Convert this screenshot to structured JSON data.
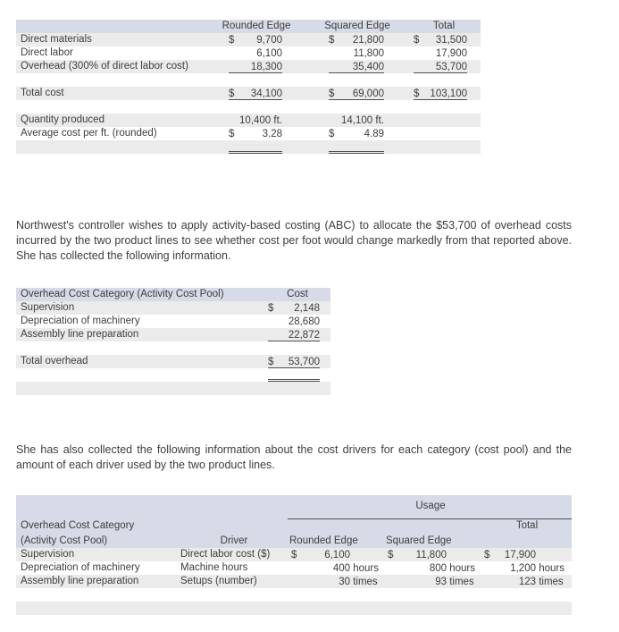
{
  "colors": {
    "header_bg": "#d7dbe7",
    "stripe_bg": "#ebebeb",
    "rule": "#4f4f4f",
    "text": "#3d3d3d",
    "page_bg": "#ffffff"
  },
  "paragraphs": {
    "abc_intro": "Northwest's controller wishes to apply activity-based costing (ABC) to allocate the $53,700 of overhead costs incurred by the two product lines to see whether cost per foot would change markedly from that reported above. She has collected the following information.",
    "drivers_intro": "She has also collected the following information about the cost drivers for each category (cost pool) and the amount of each driver used by the two product lines."
  },
  "tables": {
    "cost_summary": {
      "rows": [
        {
          "bg": "hdr",
          "n": "header-row",
          "cells": [
            {},
            {
              "t": "Rounded Edge"
            },
            {
              "t": "Squared Edge"
            },
            {
              "t": "Total"
            }
          ]
        },
        {
          "bg": "alt",
          "n": "row-direct-materials",
          "cells": [
            {
              "t": "Direct materials"
            },
            {
              "d": "$",
              "v": "9,700"
            },
            {
              "d": "$",
              "v": "21,800"
            },
            {
              "d": "$",
              "v": "31,500"
            }
          ]
        },
        {
          "bg": "",
          "n": "row-direct-labor",
          "cells": [
            {
              "t": "Direct labor"
            },
            {
              "v": "6,100"
            },
            {
              "v": "11,800"
            },
            {
              "v": "17,900"
            }
          ]
        },
        {
          "bg": "alt",
          "n": "row-overhead",
          "cells": [
            {
              "t": "Overhead (300% of direct labor cost)"
            },
            {
              "v": "18,300",
              "u": 1
            },
            {
              "v": "35,400",
              "u": 1
            },
            {
              "v": "53,700",
              "u": 1
            }
          ]
        },
        {
          "bg": "",
          "n": "spacer-row",
          "cells": [
            {},
            {},
            {},
            {}
          ]
        },
        {
          "bg": "alt",
          "n": "row-total-cost",
          "cells": [
            {
              "t": "Total cost"
            },
            {
              "d": "$",
              "v": "34,100",
              "u": 1
            },
            {
              "d": "$",
              "v": "69,000",
              "u": 1
            },
            {
              "d": "$",
              "v": "103,100",
              "u": 1
            }
          ]
        },
        {
          "bg": "",
          "n": "spacer-row",
          "cells": [
            {},
            {},
            {},
            {}
          ]
        },
        {
          "bg": "alt",
          "n": "row-quantity-produced",
          "cells": [
            {
              "t": "Quantity produced"
            },
            {
              "v": "10,400",
              "s": " ft."
            },
            {
              "v": "14,100",
              "s": " ft."
            },
            {}
          ]
        },
        {
          "bg": "",
          "n": "row-average-cost-per-ft",
          "cells": [
            {
              "t": "Average cost per ft. (rounded)"
            },
            {
              "d": "$",
              "v": "3.28"
            },
            {
              "d": "$",
              "v": "4.89"
            },
            {}
          ]
        },
        {
          "bg": "alt",
          "n": "double-rule-row",
          "cells": [
            {},
            {
              "v": "",
              "u": 2
            },
            {
              "v": "",
              "u": 2
            },
            {}
          ]
        },
        {
          "bg": "",
          "n": "spacer-row",
          "cells": [
            {},
            {},
            {},
            {}
          ]
        }
      ]
    },
    "overhead_pools": {
      "rows": [
        {
          "bg": "hdr",
          "n": "header-row",
          "cells": [
            {
              "t": "Overhead Cost Category (Activity Cost Pool)"
            },
            {
              "t": "Cost"
            }
          ]
        },
        {
          "bg": "alt",
          "n": "row-supervision",
          "cells": [
            {
              "t": "Supervision"
            },
            {
              "d": "$",
              "v": "2,148"
            }
          ]
        },
        {
          "bg": "",
          "n": "row-depreciation",
          "cells": [
            {
              "t": "Depreciation of machinery"
            },
            {
              "v": "28,680"
            }
          ]
        },
        {
          "bg": "alt",
          "n": "row-assembly-line-prep",
          "cells": [
            {
              "t": "Assembly line preparation"
            },
            {
              "v": "22,872",
              "u": 1
            }
          ]
        },
        {
          "bg": "",
          "n": "spacer-row",
          "cells": [
            {},
            {}
          ]
        },
        {
          "bg": "alt",
          "n": "row-total-overhead",
          "cells": [
            {
              "t": "Total overhead"
            },
            {
              "d": "$",
              "v": "53,700",
              "u": 1
            }
          ]
        },
        {
          "bg": "",
          "n": "double-rule-row",
          "cells": [
            {},
            {
              "v": "",
              "u": 2
            }
          ]
        },
        {
          "bg": "alt",
          "n": "spacer-row",
          "cells": [
            {},
            {}
          ]
        },
        {
          "bg": "",
          "n": "spacer-row",
          "cells": [
            {},
            {}
          ]
        }
      ]
    },
    "cost_drivers": {
      "rows": [
        {
          "bg": "hdr",
          "n": "usage-header-row",
          "cells": [
            {},
            {},
            {
              "t": "Usage",
              "span": 3,
              "u": 1
            }
          ]
        },
        {
          "bg": "hdr",
          "n": "header-row-line1",
          "cells": [
            {
              "t": "Overhead Cost Category"
            },
            {},
            {},
            {},
            {
              "t": "Total"
            }
          ]
        },
        {
          "bg": "hdr",
          "n": "header-row-line2",
          "cells": [
            {
              "t": "(Activity Cost Pool)"
            },
            {
              "t": "Driver"
            },
            {
              "t": "Rounded Edge"
            },
            {
              "t": "Squared Edge"
            },
            {}
          ]
        },
        {
          "bg": "alt",
          "n": "row-supervision",
          "cells": [
            {
              "t": "Supervision"
            },
            {
              "t": "Direct labor cost ($)"
            },
            {
              "d": "$",
              "v": "6,100"
            },
            {
              "d": "$",
              "v": "11,800"
            },
            {
              "d": "$",
              "v": "17,900"
            }
          ]
        },
        {
          "bg": "",
          "n": "row-depreciation",
          "cells": [
            {
              "t": "Depreciation of machinery"
            },
            {
              "t": "Machine hours"
            },
            {
              "v": "400",
              "s": " hours"
            },
            {
              "v": "800",
              "s": " hours"
            },
            {
              "v": "1,200",
              "s": " hours"
            }
          ]
        },
        {
          "bg": "alt",
          "n": "row-assembly-line-prep",
          "cells": [
            {
              "t": "Assembly line preparation"
            },
            {
              "t": "Setups (number)"
            },
            {
              "v": "30",
              "s": " times"
            },
            {
              "v": "93",
              "s": " times"
            },
            {
              "v": "123",
              "s": " times"
            }
          ]
        },
        {
          "bg": "",
          "n": "spacer-row",
          "cells": [
            {},
            {},
            {},
            {},
            {}
          ]
        },
        {
          "bg": "alt",
          "n": "spacer-row",
          "cells": [
            {},
            {},
            {},
            {},
            {}
          ]
        }
      ]
    }
  }
}
